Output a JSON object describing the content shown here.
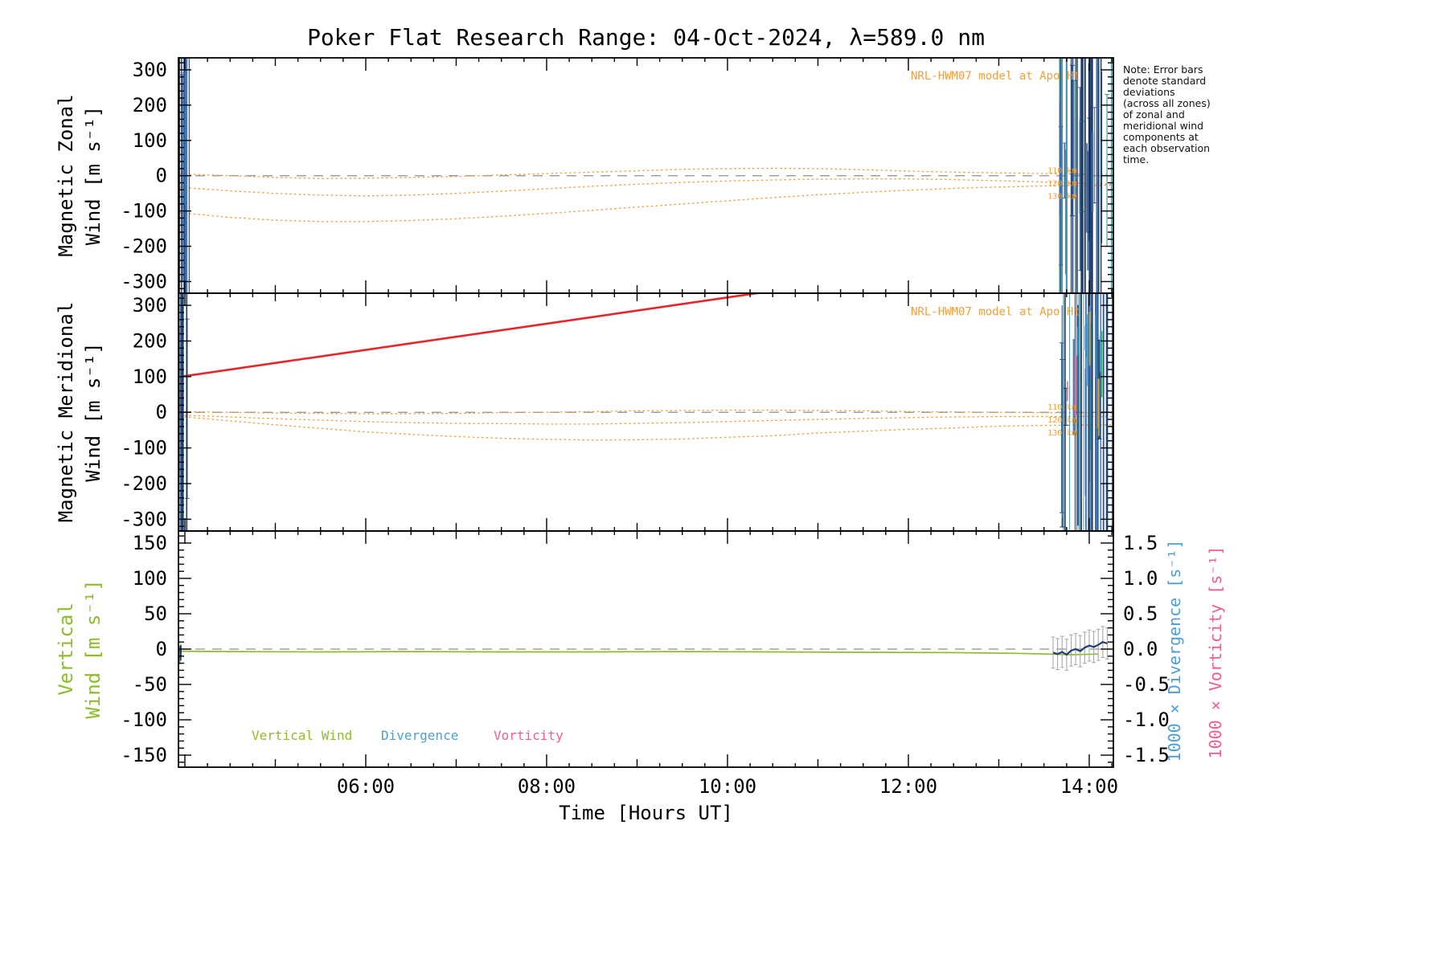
{
  "title": "Poker Flat Research Range: 04-Oct-2024, λ=589.0 nm",
  "note": "Note: Error bars\ndenote standard\ndeviations\n(across all zones)\nof zonal and\nmeridional wind\ncomponents at\neach observation\ntime.",
  "legend": [
    {
      "label": "Vertical Wind",
      "color": "#8fbc2a"
    },
    {
      "label": "Divergence",
      "color": "#4a9fd8"
    },
    {
      "label": "Vorticity",
      "color": "#ee5f8d"
    }
  ],
  "right_axis_labels": [
    {
      "label": "1000 × Divergence [s⁻¹]",
      "color": "#4a9fd8"
    },
    {
      "label": "1000 × Vorticity [s⁻¹]",
      "color": "#ee5f8d"
    }
  ],
  "colors": {
    "model_orange": "#f0a03c",
    "red": "#e8262a",
    "zero_dash": "#8f8f8f",
    "error_gray": "#a8a8a8"
  },
  "chart_data": {
    "type": "line",
    "title": "Poker Flat Research Range: 04-Oct-2024, λ=589.0 nm",
    "x_axis": {
      "label": "Time [Hours UT]",
      "range_hours": [
        3.929,
        14.267
      ],
      "tick_hours": [
        6,
        8,
        10,
        12,
        14
      ],
      "tick_labels": [
        "06:00",
        "08:00",
        "10:00",
        "12:00",
        "14:00"
      ],
      "minor_step_hours": 0.25
    },
    "panels": [
      {
        "id": "magnetic-zonal",
        "ylabel_lines": [
          "Magnetic Zonal",
          "Wind [m s⁻¹]"
        ],
        "ylabel_color": "#000000",
        "ylim": [
          -333,
          334
        ],
        "yticks": [
          -300,
          -200,
          -100,
          0,
          100,
          200,
          300
        ],
        "y_minor": 20,
        "model_label": "NRL-HWM07 model at Apo Ht",
        "model_label_pos": {
          "t": 13.9,
          "value": 272
        },
        "altitude_labels": [
          {
            "text": "110 km",
            "t": 13.54,
            "value": 16
          },
          {
            "text": "120 km",
            "t": 13.54,
            "value": -20
          },
          {
            "text": "130 km",
            "t": 13.54,
            "value": -56
          }
        ],
        "model_curves": [
          {
            "name": "hwm07-110km",
            "points": [
              [
                3.95,
                5
              ],
              [
                4.5,
                0
              ],
              [
                5,
                -5
              ],
              [
                5.5,
                -8
              ],
              [
                6,
                -7
              ],
              [
                6.5,
                -5
              ],
              [
                7,
                -2
              ],
              [
                7.5,
                2
              ],
              [
                8,
                6
              ],
              [
                8.5,
                10
              ],
              [
                9,
                14
              ],
              [
                9.5,
                18
              ],
              [
                10,
                20
              ],
              [
                10.5,
                21
              ],
              [
                11,
                20
              ],
              [
                11.5,
                17
              ],
              [
                12,
                13
              ],
              [
                12.5,
                10
              ],
              [
                13,
                8
              ],
              [
                13.5,
                6
              ],
              [
                14.26,
                4
              ]
            ]
          },
          {
            "name": "hwm07-120km",
            "points": [
              [
                3.95,
                -33
              ],
              [
                4.5,
                -43
              ],
              [
                5,
                -50
              ],
              [
                5.5,
                -55
              ],
              [
                6,
                -57
              ],
              [
                6.5,
                -55
              ],
              [
                7,
                -50
              ],
              [
                7.5,
                -44
              ],
              [
                8,
                -37
              ],
              [
                8.5,
                -30
              ],
              [
                9,
                -24
              ],
              [
                9.5,
                -19
              ],
              [
                10,
                -15
              ],
              [
                10.5,
                -12
              ],
              [
                11,
                -10
              ],
              [
                11.5,
                -9
              ],
              [
                12,
                -9
              ],
              [
                12.5,
                -11
              ],
              [
                13,
                -14
              ],
              [
                13.5,
                -18
              ],
              [
                14.26,
                -24
              ]
            ]
          },
          {
            "name": "hwm07-130km",
            "points": [
              [
                3.95,
                -105
              ],
              [
                4.5,
                -118
              ],
              [
                5,
                -126
              ],
              [
                5.5,
                -130
              ],
              [
                6,
                -130
              ],
              [
                6.5,
                -127
              ],
              [
                7,
                -122
              ],
              [
                7.5,
                -115
              ],
              [
                8,
                -107
              ],
              [
                8.5,
                -98
              ],
              [
                9,
                -89
              ],
              [
                9.5,
                -80
              ],
              [
                10,
                -71
              ],
              [
                10.5,
                -62
              ],
              [
                11,
                -54
              ],
              [
                11.5,
                -47
              ],
              [
                12,
                -41
              ],
              [
                12.5,
                -36
              ],
              [
                13,
                -32
              ],
              [
                13.5,
                -29
              ],
              [
                14.26,
                -27
              ]
            ]
          }
        ],
        "clusters": [
          {
            "t0": 3.93,
            "t1": 4.05,
            "count": 13,
            "full_frac": 0.72,
            "seed": 11,
            "palette": [
              "#16325c",
              "#27508c",
              "#3a6ea5"
            ]
          },
          {
            "t0": 13.67,
            "t1": 14.26,
            "count": 38,
            "full_frac": 0.62,
            "seed": 21,
            "palette": [
              "#16325c",
              "#27508c",
              "#3a6ea5",
              "#2e8b9a"
            ]
          }
        ]
      },
      {
        "id": "magnetic-meridional",
        "ylabel_lines": [
          "Magnetic Meridional",
          "Wind [m s⁻¹]"
        ],
        "ylabel_color": "#000000",
        "ylim": [
          -333,
          334
        ],
        "yticks": [
          -300,
          -200,
          -100,
          0,
          100,
          200,
          300
        ],
        "y_minor": 20,
        "model_label": "NRL-HWM07 model at Apo Ht",
        "model_label_pos": {
          "t": 13.9,
          "value": 272
        },
        "altitude_labels": [
          {
            "text": "110 km",
            "t": 13.54,
            "value": 16
          },
          {
            "text": "120 km",
            "t": 13.54,
            "value": -20
          },
          {
            "text": "130 km",
            "t": 13.54,
            "value": -56
          }
        ],
        "model_curves": [
          {
            "name": "hwm07-110km",
            "points": [
              [
                3.95,
                2
              ],
              [
                4.5,
                0
              ],
              [
                5,
                -2
              ],
              [
                5.5,
                -3
              ],
              [
                6,
                -4
              ],
              [
                6.5,
                -4
              ],
              [
                7,
                -3
              ],
              [
                7.5,
                -1
              ],
              [
                8,
                0
              ],
              [
                8.5,
                2
              ],
              [
                9,
                4
              ],
              [
                9.5,
                5
              ],
              [
                10,
                6
              ],
              [
                10.5,
                6
              ],
              [
                11,
                5
              ],
              [
                11.5,
                4
              ],
              [
                12,
                2
              ],
              [
                12.5,
                1
              ],
              [
                13,
                0
              ],
              [
                13.5,
                -1
              ],
              [
                14.26,
                -2
              ]
            ]
          },
          {
            "name": "hwm07-120km",
            "points": [
              [
                3.95,
                -8
              ],
              [
                4.5,
                -13
              ],
              [
                5,
                -18
              ],
              [
                5.5,
                -22
              ],
              [
                6,
                -26
              ],
              [
                6.5,
                -29
              ],
              [
                7,
                -31
              ],
              [
                7.5,
                -32
              ],
              [
                8,
                -33
              ],
              [
                8.5,
                -33
              ],
              [
                9,
                -31
              ],
              [
                9.5,
                -29
              ],
              [
                10,
                -26
              ],
              [
                10.5,
                -23
              ],
              [
                11,
                -20
              ],
              [
                11.5,
                -17
              ],
              [
                12,
                -15
              ],
              [
                12.5,
                -13
              ],
              [
                13,
                -12
              ],
              [
                13.5,
                -12
              ],
              [
                14.26,
                -12
              ]
            ]
          },
          {
            "name": "hwm07-130km",
            "points": [
              [
                3.95,
                -12
              ],
              [
                4.5,
                -24
              ],
              [
                5,
                -35
              ],
              [
                5.5,
                -45
              ],
              [
                6,
                -55
              ],
              [
                6.5,
                -62
              ],
              [
                7,
                -68
              ],
              [
                7.5,
                -73
              ],
              [
                8,
                -76
              ],
              [
                8.5,
                -78
              ],
              [
                9,
                -77
              ],
              [
                9.5,
                -75
              ],
              [
                10,
                -70
              ],
              [
                10.5,
                -66
              ],
              [
                11,
                -58
              ],
              [
                11.5,
                -53
              ],
              [
                12,
                -48
              ],
              [
                12.5,
                -44
              ],
              [
                13,
                -39
              ],
              [
                13.5,
                -37
              ],
              [
                14.26,
                -35
              ]
            ]
          }
        ],
        "red_line": {
          "points": [
            [
              3.94,
              -20
            ],
            [
              3.96,
              100
            ],
            [
              10.35,
              335
            ]
          ]
        },
        "clusters": [
          {
            "t0": 3.93,
            "t1": 4.05,
            "count": 13,
            "full_frac": 0.72,
            "seed": 12,
            "palette": [
              "#16325c",
              "#27508c",
              "#3a6ea5"
            ]
          },
          {
            "t0": 13.67,
            "t1": 14.26,
            "count": 38,
            "full_frac": 0.6,
            "seed": 22,
            "palette": [
              "#16325c",
              "#27508c",
              "#3a6ea5",
              "#2e8b9a"
            ]
          },
          {
            "t0": 13.72,
            "t1": 14.18,
            "count": 14,
            "short": true,
            "vmin": -60,
            "vmax": 260,
            "len_min": 20,
            "len_max": 90,
            "seed": 33,
            "palette": [
              "#7b5ea7",
              "#3aa655",
              "#c0b23a",
              "#d86a9a",
              "#4a9fd8"
            ]
          }
        ]
      },
      {
        "id": "vertical-wind",
        "ylabel_lines": [
          "Vertical",
          "Wind [m s⁻¹]"
        ],
        "ylabel_color": "#8fbc2a",
        "ylim": [
          -167,
          167
        ],
        "yticks": [
          -150,
          -100,
          -50,
          0,
          50,
          100,
          150
        ],
        "y_minor": 10,
        "right_ylim": [
          -1.67,
          1.67
        ],
        "right_ytick_values": [
          1.5,
          1.0,
          0.5,
          0.0,
          -0.5,
          -1.0,
          -1.5
        ],
        "right_ytick_labels": [
          "1.5",
          "1.0",
          "0.5",
          "0.0",
          "-0.5",
          "-1.0",
          "-1.5"
        ],
        "right_y_minor": 0.1,
        "series": {
          "vertical_wind": {
            "color": "#8fbc2a",
            "points": [
              [
                3.93,
                -3
              ],
              [
                4.5,
                -3.5
              ],
              [
                5.5,
                -4
              ],
              [
                6.5,
                -3.5
              ],
              [
                7.5,
                -4
              ],
              [
                8.5,
                -4
              ],
              [
                9.5,
                -3.5
              ],
              [
                10.5,
                -4
              ],
              [
                11.5,
                -4.5
              ],
              [
                12.5,
                -5
              ],
              [
                13.2,
                -6
              ],
              [
                13.55,
                -7
              ],
              [
                13.8,
                -8
              ],
              [
                14.1,
                -7
              ]
            ]
          },
          "divergence": {
            "color": "#1f3d7a",
            "err": 0.22,
            "points": [
              [
                13.6,
                -0.05
              ],
              [
                13.65,
                -0.07
              ],
              [
                13.7,
                -0.04
              ],
              [
                13.75,
                -0.08
              ],
              [
                13.8,
                -0.02
              ],
              [
                13.85,
                0.0
              ],
              [
                13.9,
                -0.03
              ],
              [
                13.95,
                0.02
              ],
              [
                14.0,
                0.05
              ],
              [
                14.05,
                0.03
              ],
              [
                14.1,
                0.06
              ],
              [
                14.15,
                0.1
              ],
              [
                14.2,
                0.08
              ]
            ]
          }
        },
        "clusters": [
          {
            "t0": 3.93,
            "t1": 3.99,
            "count": 4,
            "short": true,
            "vmin": -12,
            "vmax": 10,
            "len_min": 10,
            "len_max": 26,
            "seed": 7,
            "palette": [
              "#16325c",
              "#27508c"
            ]
          }
        ]
      }
    ]
  }
}
